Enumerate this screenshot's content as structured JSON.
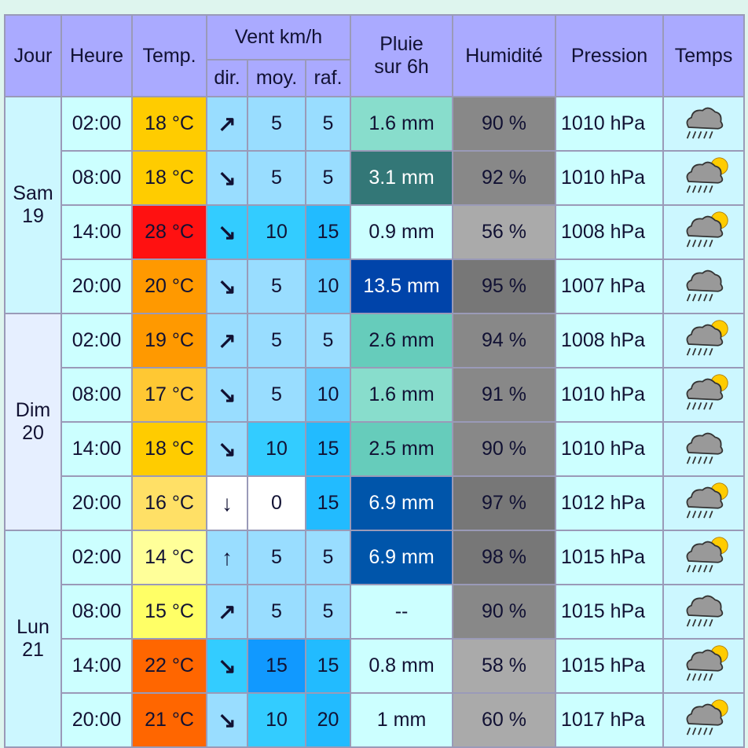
{
  "header": {
    "jour": "Jour",
    "heure": "Heure",
    "temp": "Temp.",
    "vent": "Vent km/h",
    "dir": "dir.",
    "moy": "moy.",
    "raf": "raf.",
    "pluie": [
      "Pluie",
      "sur 6h"
    ],
    "humidite": "Humidité",
    "pression": "Pression",
    "temps": "Temps"
  },
  "days": [
    {
      "day": "Sam",
      "date": 19,
      "rows": [
        {
          "heure": "02:00",
          "temp": "18 °C",
          "dir": "↗",
          "moy": 5,
          "raf": 5,
          "pluie": "1.6 mm",
          "humidite": "90 %",
          "pression": "1010 hPa"
        },
        {
          "heure": "08:00",
          "temp": "18 °C",
          "dir": "↘",
          "moy": 5,
          "raf": 5,
          "pluie": "3.1 mm",
          "humidite": "92 %",
          "pression": "1010 hPa"
        },
        {
          "heure": "14:00",
          "temp": "28 °C",
          "dir": "↘",
          "moy": 10,
          "raf": 15,
          "pluie": "0.9 mm",
          "humidite": "56 %",
          "pression": "1008 hPa"
        },
        {
          "heure": "20:00",
          "temp": "20 °C",
          "dir": "↘",
          "moy": 5,
          "raf": 10,
          "pluie": "13.5 mm",
          "humidite": "95 %",
          "pression": "1007 hPa"
        }
      ]
    },
    {
      "day": "Dim",
      "date": 20,
      "rows": [
        {
          "heure": "02:00",
          "temp": "19 °C",
          "dir": "↗",
          "moy": 5,
          "raf": 5,
          "pluie": "2.6 mm",
          "humidite": "94 %",
          "pression": "1008 hPa"
        },
        {
          "heure": "08:00",
          "temp": "17 °C",
          "dir": "↘",
          "moy": 5,
          "raf": 10,
          "pluie": "1.6 mm",
          "humidite": "91 %",
          "pression": "1010 hPa"
        },
        {
          "heure": "14:00",
          "temp": "18 °C",
          "dir": "↘",
          "moy": 10,
          "raf": 15,
          "pluie": "2.5 mm",
          "humidite": "90 %",
          "pression": "1010 hPa"
        },
        {
          "heure": "20:00",
          "temp": "16 °C",
          "dir": "↓",
          "moy": 0,
          "raf": 15,
          "pluie": "6.9 mm",
          "humidite": "97 %",
          "pression": "1012 hPa"
        }
      ]
    },
    {
      "day": "Lun",
      "date": 21,
      "rows": [
        {
          "heure": "02:00",
          "temp": "14 °C",
          "dir": "↑",
          "moy": 5,
          "raf": 5,
          "pluie": "6.9 mm",
          "humidite": "98 %",
          "pression": "1015 hPa"
        },
        {
          "heure": "08:00",
          "temp": "15 °C",
          "dir": "↗",
          "moy": 5,
          "raf": 5,
          "pluie": "--",
          "humidite": "90 %",
          "pression": "1015 hPa"
        },
        {
          "heure": "14:00",
          "temp": "22 °C",
          "dir": "↘",
          "moy": 15,
          "raf": 15,
          "pluie": "0.8 mm",
          "humidite": "58 %",
          "pression": "1015 hPa"
        },
        {
          "heure": "20:00",
          "temp": "21 °C",
          "dir": "↘",
          "moy": 10,
          "raf": 20,
          "pluie": "1 mm",
          "humidite": "60 %",
          "pression": "1017 hPa"
        }
      ]
    }
  ]
}
